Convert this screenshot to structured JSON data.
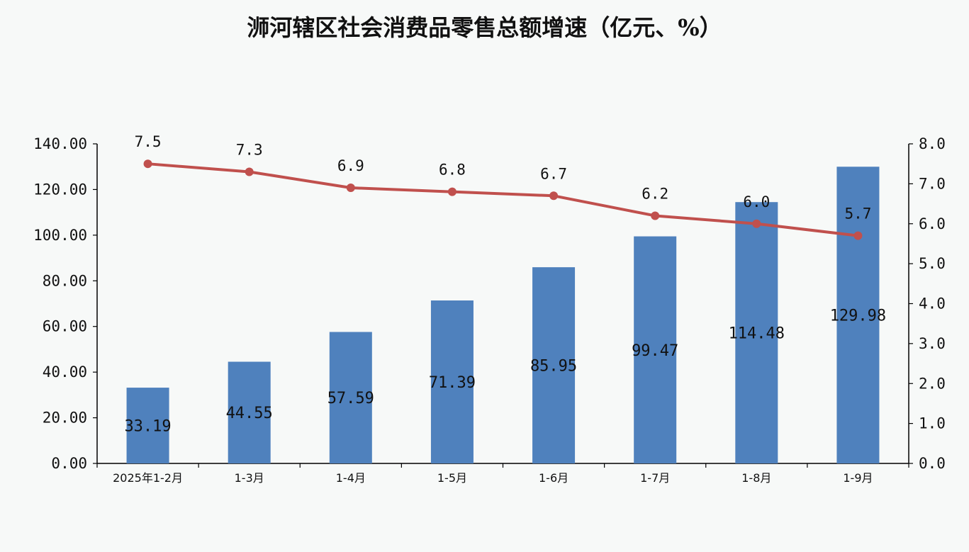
{
  "chart_data": {
    "type": "bar",
    "title": "浉河辖区社会消费品零售总额增速（亿元、%）",
    "categories": [
      "2025年1-2月",
      "1-3月",
      "1-4月",
      "1-5月",
      "1-6月",
      "1-7月",
      "1-8月",
      "1-9月"
    ],
    "series": [
      {
        "type": "bar",
        "axis": "left",
        "color": "#4f81bd",
        "values": [
          33.19,
          44.55,
          57.59,
          71.39,
          85.95,
          99.47,
          114.48,
          129.98
        ],
        "labels": [
          "33.19",
          "44.55",
          "57.59",
          "71.39",
          "85.95",
          "99.47",
          "114.48",
          "129.98"
        ]
      },
      {
        "type": "line",
        "axis": "right",
        "color": "#c0504d",
        "values": [
          7.5,
          7.3,
          6.9,
          6.8,
          6.7,
          6.2,
          6.0,
          5.7
        ],
        "labels": [
          "7.5",
          "7.3",
          "6.9",
          "6.8",
          "6.7",
          "6.2",
          "6.0",
          "5.7"
        ]
      }
    ],
    "ylim_left": [
      0,
      140
    ],
    "ylim_right": [
      0,
      8
    ],
    "y_ticks_left": [
      "0.00",
      "20.00",
      "40.00",
      "60.00",
      "80.00",
      "100.00",
      "120.00",
      "140.00"
    ],
    "y_ticks_right": [
      "0.0",
      "1.0",
      "2.0",
      "3.0",
      "4.0",
      "5.0",
      "6.0",
      "7.0",
      "8.0"
    ],
    "grid": false,
    "legend": "none"
  }
}
